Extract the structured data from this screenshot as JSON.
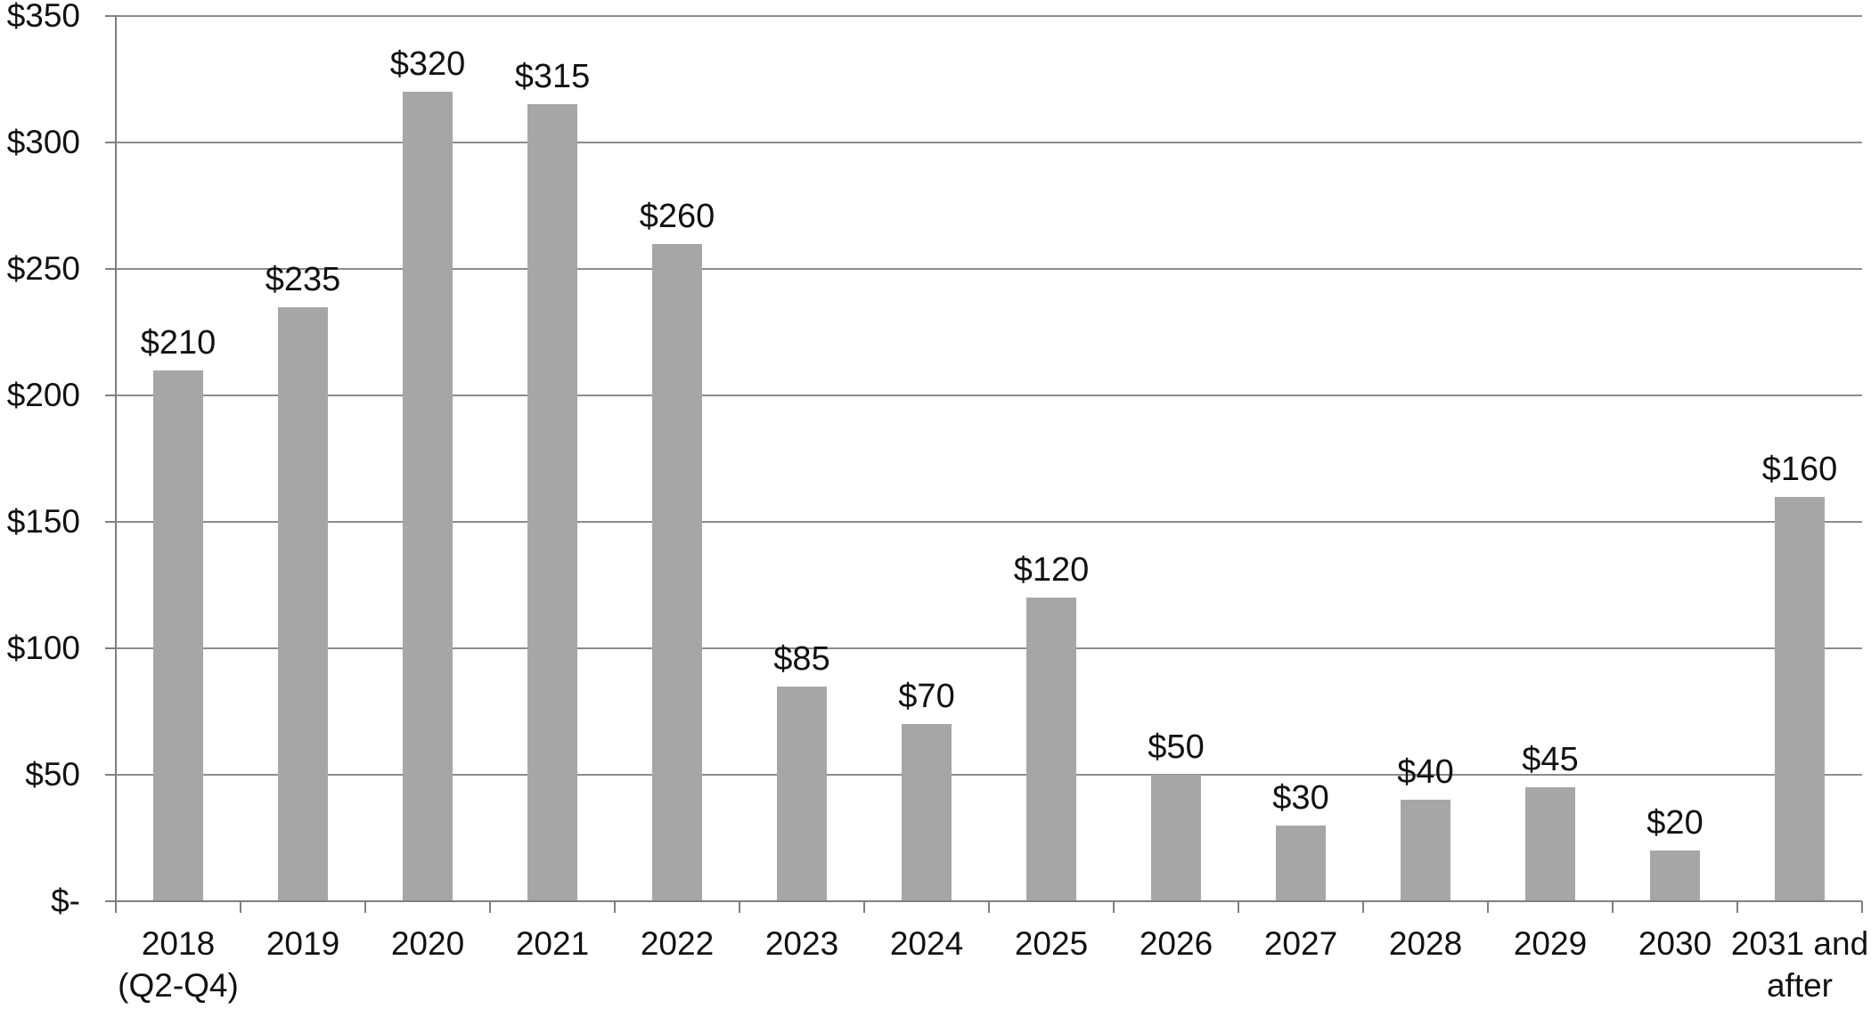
{
  "chart_data": {
    "type": "bar",
    "title": "",
    "xlabel": "",
    "ylabel": "",
    "grid": true,
    "legend_position": "none",
    "categories": [
      "2018 (Q2-Q4)",
      "2019",
      "2020",
      "2021",
      "2022",
      "2023",
      "2024",
      "2025",
      "2026",
      "2027",
      "2028",
      "2029",
      "2030",
      "2031 and after"
    ],
    "category_label_lines": [
      [
        "2018",
        "(Q2-Q4)"
      ],
      [
        "2019"
      ],
      [
        "2020"
      ],
      [
        "2021"
      ],
      [
        "2022"
      ],
      [
        "2023"
      ],
      [
        "2024"
      ],
      [
        "2025"
      ],
      [
        "2026"
      ],
      [
        "2027"
      ],
      [
        "2028"
      ],
      [
        "2029"
      ],
      [
        "2030"
      ],
      [
        "2031 and",
        "after"
      ]
    ],
    "values": [
      210,
      235,
      320,
      315,
      260,
      85,
      70,
      120,
      50,
      30,
      40,
      45,
      20,
      160
    ],
    "data_labels": [
      "$210",
      "$235",
      "$320",
      "$315",
      "$260",
      "$85",
      "$70",
      "$120",
      "$50",
      "$30",
      "$40",
      "$45",
      "$20",
      "$160"
    ],
    "ytick_labels_bottom_to_top": [
      "$-",
      "$50",
      "$100",
      "$150",
      "$200",
      "$250",
      "$300",
      "$350"
    ],
    "ylim": [
      0,
      350
    ],
    "ystep": 50,
    "colors": {
      "bar": "#a6a6a6",
      "gridline": "#8c8c8c",
      "axis": "#7f7f7f",
      "text": "#111111",
      "background": "#ffffff"
    }
  }
}
